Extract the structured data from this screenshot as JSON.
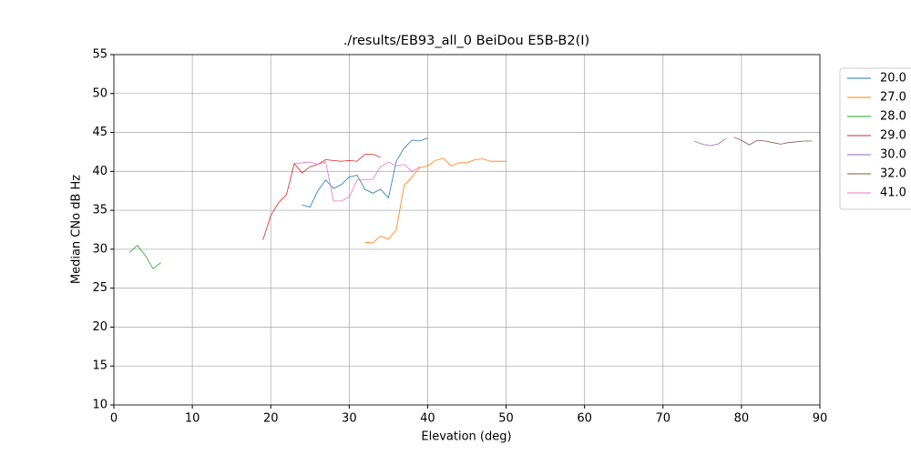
{
  "chart_data": {
    "type": "line",
    "title": "./results/EB93_all_0 BeiDou E5B-B2(I)",
    "x_label": "Elevation (deg)",
    "y_label": "Median CNo dB Hz",
    "xlim": [
      0,
      90
    ],
    "xticks": [
      0,
      10,
      20,
      30,
      40,
      50,
      60,
      70,
      80,
      90
    ],
    "ylim": [
      10,
      55
    ],
    "yticks": [
      10,
      15,
      20,
      25,
      30,
      35,
      40,
      45,
      50,
      55
    ],
    "grid": true,
    "legend": "outside-right",
    "series": [
      {
        "name": "20.0",
        "color": "#1f77b4",
        "x": [
          24,
          25,
          26,
          27,
          28,
          29,
          30,
          31,
          32,
          33,
          34,
          35,
          36,
          37,
          38,
          39,
          40
        ],
        "values": [
          35.7,
          35.4,
          37.5,
          38.9,
          37.8,
          38.3,
          39.3,
          39.5,
          37.7,
          37.2,
          37.7,
          36.6,
          41.3,
          43.0,
          44.0,
          43.9,
          44.3
        ]
      },
      {
        "name": "27.0",
        "color": "#ff7f0e",
        "x": [
          32,
          33,
          34,
          35,
          36,
          37,
          38,
          39,
          40,
          41,
          42,
          43,
          44,
          45,
          46,
          47,
          48,
          49,
          50
        ],
        "values": [
          30.9,
          30.8,
          31.7,
          31.3,
          32.5,
          38.2,
          39.3,
          40.5,
          40.7,
          41.4,
          41.7,
          40.7,
          41.1,
          41.1,
          41.5,
          41.6,
          41.3,
          41.3,
          41.3
        ]
      },
      {
        "name": "28.0",
        "color": "#2ca02c",
        "x": [
          2,
          3,
          4,
          5,
          6
        ],
        "values": [
          29.6,
          30.5,
          29.2,
          27.5,
          28.3
        ]
      },
      {
        "name": "29.0",
        "color": "#d62728",
        "x": [
          19,
          20,
          21,
          22,
          23,
          24,
          25,
          26,
          27,
          28,
          29,
          30,
          31,
          32,
          33,
          34
        ],
        "values": [
          31.2,
          34.3,
          36.0,
          37.0,
          41.0,
          39.8,
          40.6,
          40.9,
          41.5,
          41.4,
          41.3,
          41.4,
          41.3,
          42.2,
          42.2,
          41.8
        ]
      },
      {
        "name": "30.0",
        "color": "#9467bd",
        "x": [
          74,
          75,
          76,
          77,
          78
        ],
        "values": [
          43.9,
          43.5,
          43.3,
          43.5,
          44.2
        ]
      },
      {
        "name": "32.0",
        "color": "#8c564b",
        "x": [
          79,
          80,
          81,
          82,
          83,
          84,
          85,
          86,
          87,
          88,
          89
        ],
        "values": [
          44.4,
          44.0,
          43.4,
          44.0,
          43.9,
          43.7,
          43.5,
          43.7,
          43.8,
          43.9,
          43.9
        ]
      },
      {
        "name": "41.0",
        "color": "#e377c2",
        "x": [
          23,
          24,
          25,
          26,
          27,
          28,
          29,
          30,
          31,
          32,
          33,
          34,
          35,
          36,
          37,
          38,
          39
        ],
        "values": [
          41.0,
          41.1,
          41.2,
          40.9,
          41.2,
          36.2,
          36.2,
          36.7,
          38.9,
          38.9,
          39.0,
          40.6,
          41.2,
          40.7,
          40.9,
          40.0,
          40.6
        ]
      }
    ]
  }
}
